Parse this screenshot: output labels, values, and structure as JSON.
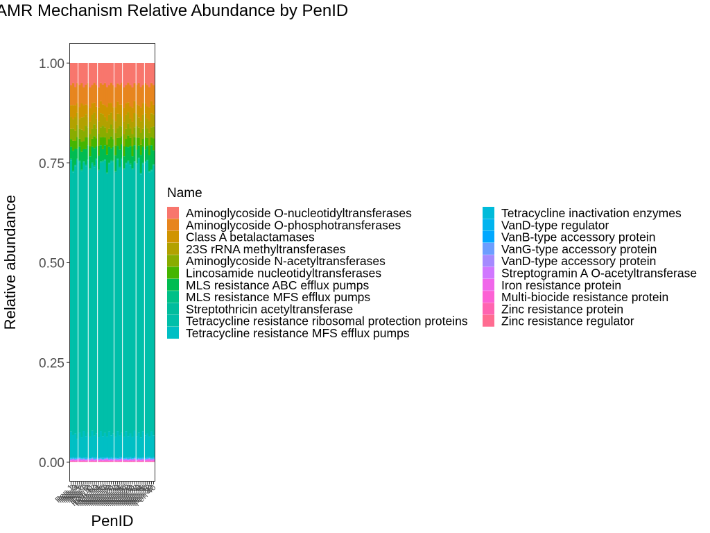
{
  "chart_data": {
    "type": "bar",
    "stacked": true,
    "title": "AMR Mechanism Relative Abundance by PenID",
    "xlabel": "PenID",
    "ylabel": "Relative abundance",
    "ylim": [
      0,
      1
    ],
    "yticks": [
      "0.00",
      "0.25",
      "0.50",
      "0.75",
      "1.00"
    ],
    "grid": false,
    "legend_position": "right",
    "legend_title": "Name",
    "categories": [
      "Pen 1",
      "Pen 2",
      "Pen 3",
      "Pen 4",
      "Pen 5",
      "Pen 6",
      "Pen 7",
      "Pen 8",
      "Pen 9",
      "Pen 10",
      "Pen 11",
      "Pen 12",
      "Pen 13",
      "Pen 14",
      "Pen 15",
      "Pen 16",
      "Pen 17",
      "Pen 18",
      "Pen 19",
      "Pen 20",
      "Pen 21",
      "Pen 22",
      "Pen 23",
      "Pen 24",
      "Pen 25",
      "Pen 26",
      "Pen 27",
      "Pen 28",
      "Pen 29",
      "Pen 30",
      "Pen 31",
      "Pen 32",
      "Pen 33",
      "Pen 34",
      "Pen 35",
      "Pen 36",
      "Pen 37",
      "Pen 38",
      "Pen 39",
      "Pen 40"
    ],
    "category_labels_note": "overlapping rotated tick labels, unreadable",
    "series": [
      {
        "name": "Aminoglycoside O-nucleotidyltransferases",
        "color": "#F8766D",
        "values": [
          0.055,
          0.05,
          0.06,
          0.05,
          0.055,
          0.05,
          0.06,
          0.055,
          0.05,
          0.06,
          0.055,
          0.05,
          0.055,
          0.06,
          0.05,
          0.055,
          0.05,
          0.06,
          0.055,
          0.05,
          0.055,
          0.06,
          0.05,
          0.055,
          0.05,
          0.06,
          0.055,
          0.05,
          0.055,
          0.06,
          0.05,
          0.055,
          0.05,
          0.06,
          0.055,
          0.05,
          0.055,
          0.06,
          0.05,
          0.055
        ]
      },
      {
        "name": "Aminoglycoside O-phosphotransferases",
        "color": "#E7851E",
        "values": [
          0.05,
          0.055,
          0.045,
          0.05,
          0.055,
          0.05,
          0.045,
          0.05,
          0.055,
          0.05,
          0.045,
          0.05,
          0.055,
          0.05,
          0.045,
          0.05,
          0.055,
          0.05,
          0.045,
          0.05,
          0.055,
          0.05,
          0.045,
          0.05,
          0.055,
          0.05,
          0.045,
          0.05,
          0.055,
          0.05,
          0.045,
          0.05,
          0.055,
          0.05,
          0.045,
          0.05,
          0.055,
          0.05,
          0.045,
          0.05
        ]
      },
      {
        "name": "Class A betalactamases",
        "color": "#D09400",
        "values": [
          0.03,
          0.035,
          0.03,
          0.025,
          0.03,
          0.035,
          0.03,
          0.025,
          0.03,
          0.035,
          0.03,
          0.025,
          0.03,
          0.035,
          0.03,
          0.025,
          0.03,
          0.035,
          0.03,
          0.025,
          0.03,
          0.035,
          0.03,
          0.025,
          0.03,
          0.035,
          0.03,
          0.025,
          0.03,
          0.035,
          0.03,
          0.025,
          0.03,
          0.035,
          0.03,
          0.025,
          0.03,
          0.035,
          0.03,
          0.025
        ]
      },
      {
        "name": "23S rRNA methyltransferases",
        "color": "#B2A100",
        "values": [
          0.03,
          0.025,
          0.035,
          0.03,
          0.025,
          0.03,
          0.035,
          0.03,
          0.025,
          0.03,
          0.035,
          0.03,
          0.025,
          0.03,
          0.035,
          0.03,
          0.025,
          0.03,
          0.035,
          0.03,
          0.025,
          0.03,
          0.035,
          0.03,
          0.025,
          0.03,
          0.035,
          0.03,
          0.025,
          0.03,
          0.035,
          0.03,
          0.025,
          0.03,
          0.035,
          0.03,
          0.025,
          0.03,
          0.035,
          0.03
        ]
      },
      {
        "name": "Aminoglycoside N-acetyltransferases",
        "color": "#89AC00",
        "values": [
          0.025,
          0.03,
          0.025,
          0.03,
          0.025,
          0.03,
          0.025,
          0.03,
          0.025,
          0.03,
          0.025,
          0.03,
          0.025,
          0.03,
          0.025,
          0.03,
          0.025,
          0.03,
          0.025,
          0.03,
          0.025,
          0.03,
          0.025,
          0.03,
          0.025,
          0.03,
          0.025,
          0.03,
          0.025,
          0.03,
          0.025,
          0.03,
          0.025,
          0.03,
          0.025,
          0.03,
          0.025,
          0.03,
          0.025,
          0.03
        ]
      },
      {
        "name": "Lincosamide nucleotidyltransferases",
        "color": "#45B500",
        "values": [
          0.02,
          0.025,
          0.02,
          0.03,
          0.02,
          0.025,
          0.02,
          0.03,
          0.02,
          0.025,
          0.02,
          0.03,
          0.02,
          0.025,
          0.02,
          0.03,
          0.02,
          0.025,
          0.02,
          0.03,
          0.02,
          0.025,
          0.02,
          0.03,
          0.02,
          0.025,
          0.02,
          0.03,
          0.02,
          0.025,
          0.02,
          0.03,
          0.02,
          0.025,
          0.02,
          0.03,
          0.02,
          0.025,
          0.02,
          0.03
        ]
      },
      {
        "name": "MLS resistance ABC efflux pumps",
        "color": "#00BC51",
        "values": [
          0.03,
          0.05,
          0.04,
          0.025,
          0.035,
          0.045,
          0.03,
          0.04,
          0.035,
          0.03,
          0.04,
          0.045,
          0.03,
          0.035,
          0.04,
          0.03,
          0.035,
          0.045,
          0.04,
          0.03,
          0.035,
          0.04,
          0.03,
          0.045,
          0.035,
          0.03,
          0.04,
          0.035,
          0.045,
          0.03,
          0.04,
          0.035,
          0.03,
          0.045,
          0.04,
          0.03,
          0.035,
          0.04,
          0.06,
          0.035
        ]
      },
      {
        "name": "MLS resistance MFS efflux pumps",
        "color": "#00C087",
        "values": [
          0.002,
          0.002,
          0.002,
          0.002,
          0.002,
          0.002,
          0.002,
          0.002,
          0.002,
          0.002,
          0.002,
          0.002,
          0.002,
          0.002,
          0.002,
          0.002,
          0.002,
          0.002,
          0.002,
          0.002,
          0.002,
          0.002,
          0.002,
          0.002,
          0.002,
          0.002,
          0.002,
          0.002,
          0.002,
          0.002,
          0.002,
          0.002,
          0.002,
          0.002,
          0.002,
          0.002,
          0.002,
          0.002,
          0.002,
          0.002
        ]
      },
      {
        "name": "Streptothricin acetyltransferase",
        "color": "#00BD9D",
        "values": [
          0.002,
          0.002,
          0.002,
          0.002,
          0.002,
          0.002,
          0.002,
          0.002,
          0.002,
          0.002,
          0.002,
          0.002,
          0.002,
          0.002,
          0.002,
          0.002,
          0.002,
          0.002,
          0.002,
          0.002,
          0.002,
          0.002,
          0.002,
          0.002,
          0.002,
          0.002,
          0.002,
          0.002,
          0.002,
          0.002,
          0.002,
          0.002,
          0.002,
          0.002,
          0.002,
          0.002,
          0.002,
          0.002,
          0.002,
          0.002
        ]
      },
      {
        "name": "Tetracycline resistance ribosomal protection proteins",
        "color": "#00BFA9",
        "values": [
          0.68,
          0.66,
          0.67,
          0.7,
          0.68,
          0.66,
          0.67,
          0.69,
          0.68,
          0.66,
          0.67,
          0.68,
          0.69,
          0.66,
          0.67,
          0.7,
          0.68,
          0.66,
          0.67,
          0.69,
          0.68,
          0.66,
          0.67,
          0.68,
          0.69,
          0.66,
          0.67,
          0.7,
          0.68,
          0.66,
          0.67,
          0.69,
          0.68,
          0.66,
          0.67,
          0.68,
          0.69,
          0.66,
          0.65,
          0.68
        ]
      },
      {
        "name": "Tetracycline resistance MFS efflux pumps",
        "color": "#00BFC4",
        "values": [
          0.065,
          0.055,
          0.06,
          0.045,
          0.06,
          0.05,
          0.065,
          0.055,
          0.06,
          0.05,
          0.065,
          0.055,
          0.06,
          0.05,
          0.065,
          0.055,
          0.06,
          0.05,
          0.065,
          0.055,
          0.06,
          0.05,
          0.065,
          0.055,
          0.06,
          0.05,
          0.065,
          0.055,
          0.06,
          0.05,
          0.065,
          0.055,
          0.06,
          0.05,
          0.065,
          0.055,
          0.06,
          0.05,
          0.065,
          0.055
        ]
      },
      {
        "name": "Tetracycline inactivation enzymes",
        "color": "#00BBDA",
        "values": [
          0.002,
          0.002,
          0.002,
          0.002,
          0.002,
          0.002,
          0.002,
          0.002,
          0.002,
          0.002,
          0.002,
          0.002,
          0.002,
          0.002,
          0.002,
          0.002,
          0.002,
          0.002,
          0.002,
          0.002,
          0.002,
          0.002,
          0.002,
          0.002,
          0.002,
          0.002,
          0.002,
          0.002,
          0.002,
          0.002,
          0.002,
          0.002,
          0.002,
          0.002,
          0.002,
          0.002,
          0.002,
          0.002,
          0.002,
          0.002
        ]
      },
      {
        "name": "VanD-type regulator",
        "color": "#00B4EF",
        "values": [
          0.001,
          0.001,
          0.001,
          0.001,
          0.001,
          0.001,
          0.001,
          0.001,
          0.001,
          0.001,
          0.001,
          0.001,
          0.001,
          0.001,
          0.001,
          0.001,
          0.001,
          0.001,
          0.001,
          0.001,
          0.001,
          0.001,
          0.001,
          0.001,
          0.001,
          0.001,
          0.001,
          0.001,
          0.001,
          0.001,
          0.001,
          0.001,
          0.001,
          0.001,
          0.001,
          0.001,
          0.001,
          0.001,
          0.001,
          0.001
        ]
      },
      {
        "name": "VanB-type accessory protein",
        "color": "#00A8FF",
        "values": [
          0.001,
          0.001,
          0.001,
          0.001,
          0.001,
          0.001,
          0.001,
          0.001,
          0.001,
          0.001,
          0.001,
          0.001,
          0.001,
          0.001,
          0.001,
          0.001,
          0.001,
          0.001,
          0.001,
          0.001,
          0.001,
          0.001,
          0.001,
          0.001,
          0.001,
          0.001,
          0.001,
          0.001,
          0.001,
          0.001,
          0.001,
          0.001,
          0.001,
          0.001,
          0.001,
          0.001,
          0.001,
          0.001,
          0.001,
          0.001
        ]
      },
      {
        "name": "VanG-type accessory protein",
        "color": "#6C9EFF",
        "values": [
          0.001,
          0.001,
          0.001,
          0.001,
          0.001,
          0.001,
          0.001,
          0.001,
          0.001,
          0.001,
          0.001,
          0.001,
          0.001,
          0.001,
          0.001,
          0.001,
          0.001,
          0.001,
          0.001,
          0.001,
          0.001,
          0.001,
          0.001,
          0.001,
          0.001,
          0.001,
          0.001,
          0.001,
          0.001,
          0.001,
          0.001,
          0.001,
          0.001,
          0.001,
          0.001,
          0.001,
          0.001,
          0.001,
          0.001,
          0.001
        ]
      },
      {
        "name": "VanD-type accessory protein",
        "color": "#A58AFF",
        "values": [
          0.001,
          0.001,
          0.001,
          0.001,
          0.001,
          0.001,
          0.001,
          0.001,
          0.001,
          0.001,
          0.001,
          0.001,
          0.001,
          0.001,
          0.001,
          0.001,
          0.001,
          0.001,
          0.001,
          0.001,
          0.001,
          0.001,
          0.001,
          0.001,
          0.001,
          0.001,
          0.001,
          0.001,
          0.001,
          0.001,
          0.001,
          0.001,
          0.001,
          0.001,
          0.001,
          0.001,
          0.001,
          0.001,
          0.001,
          0.001
        ]
      },
      {
        "name": "Streptogramin A O-acetyltransferase",
        "color": "#D077FF",
        "values": [
          0.001,
          0.001,
          0.001,
          0.001,
          0.001,
          0.001,
          0.001,
          0.001,
          0.001,
          0.001,
          0.001,
          0.001,
          0.001,
          0.001,
          0.001,
          0.001,
          0.001,
          0.001,
          0.001,
          0.001,
          0.001,
          0.001,
          0.001,
          0.001,
          0.001,
          0.001,
          0.001,
          0.001,
          0.001,
          0.001,
          0.001,
          0.001,
          0.001,
          0.001,
          0.001,
          0.001,
          0.001,
          0.001,
          0.001,
          0.001
        ]
      },
      {
        "name": "Iron resistance protein",
        "color": "#F066EA",
        "values": [
          0.002,
          0.003,
          0.002,
          0.003,
          0.004,
          0.002,
          0.003,
          0.002,
          0.003,
          0.002,
          0.004,
          0.002,
          0.003,
          0.002,
          0.003,
          0.002,
          0.003,
          0.004,
          0.002,
          0.003,
          0.002,
          0.003,
          0.002,
          0.003,
          0.004,
          0.002,
          0.003,
          0.002,
          0.003,
          0.002,
          0.004,
          0.002,
          0.003,
          0.002,
          0.003,
          0.002,
          0.003,
          0.004,
          0.002,
          0.003
        ]
      },
      {
        "name": "Multi-biocide resistance protein",
        "color": "#FC61D4",
        "values": [
          0.001,
          0.001,
          0.001,
          0.001,
          0.001,
          0.001,
          0.001,
          0.001,
          0.001,
          0.001,
          0.001,
          0.001,
          0.001,
          0.001,
          0.001,
          0.001,
          0.001,
          0.001,
          0.001,
          0.001,
          0.001,
          0.001,
          0.001,
          0.001,
          0.001,
          0.001,
          0.001,
          0.001,
          0.001,
          0.001,
          0.001,
          0.001,
          0.001,
          0.001,
          0.001,
          0.001,
          0.001,
          0.001,
          0.001,
          0.001
        ]
      },
      {
        "name": "Zinc resistance protein",
        "color": "#FF64B0",
        "values": [
          0.001,
          0.001,
          0.001,
          0.001,
          0.001,
          0.001,
          0.001,
          0.001,
          0.001,
          0.001,
          0.001,
          0.001,
          0.001,
          0.001,
          0.001,
          0.001,
          0.001,
          0.001,
          0.001,
          0.001,
          0.001,
          0.001,
          0.001,
          0.001,
          0.001,
          0.001,
          0.001,
          0.001,
          0.001,
          0.001,
          0.001,
          0.001,
          0.001,
          0.001,
          0.001,
          0.001,
          0.001,
          0.001,
          0.001,
          0.001
        ]
      },
      {
        "name": "Zinc resistance regulator",
        "color": "#FF6C91",
        "values": [
          0.001,
          0.001,
          0.001,
          0.001,
          0.001,
          0.001,
          0.001,
          0.001,
          0.001,
          0.001,
          0.001,
          0.001,
          0.001,
          0.001,
          0.001,
          0.001,
          0.001,
          0.001,
          0.001,
          0.001,
          0.001,
          0.001,
          0.001,
          0.001,
          0.001,
          0.001,
          0.001,
          0.001,
          0.001,
          0.001,
          0.001,
          0.001,
          0.001,
          0.001,
          0.001,
          0.001,
          0.001,
          0.001,
          0.001,
          0.001
        ]
      }
    ]
  }
}
